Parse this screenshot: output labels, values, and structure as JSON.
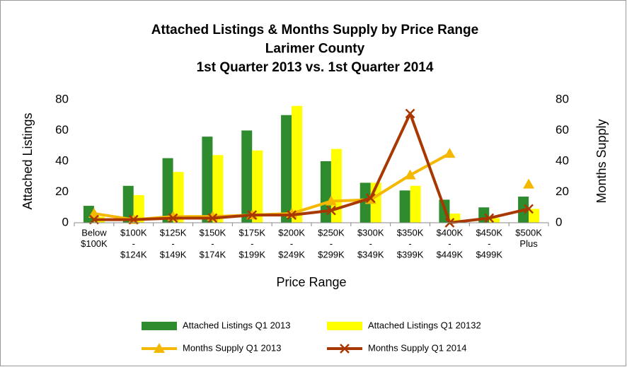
{
  "chart_data": {
    "type": "bar",
    "title": [
      "Attached Listings & Months Supply by Price Range",
      "Larimer County",
      "1st Quarter 2013 vs. 1st Quarter 2014"
    ],
    "categories": [
      [
        "Below",
        "$100K"
      ],
      [
        "$100K",
        "-",
        "$124K"
      ],
      [
        "$125K",
        "-",
        "$149K"
      ],
      [
        "$150K",
        "-",
        "$174K"
      ],
      [
        "$175K",
        "-",
        "$199K"
      ],
      [
        "$200K",
        "-",
        "$249K"
      ],
      [
        "$250K",
        "-",
        "$299K"
      ],
      [
        "$300K",
        "-",
        "$349K"
      ],
      [
        "$350K",
        "-",
        "$399K"
      ],
      [
        "$400K",
        "-",
        "$449K"
      ],
      [
        "$450K",
        "-",
        "$499K"
      ],
      [
        "$500K",
        "Plus"
      ]
    ],
    "x_label": "Price Range",
    "y_label": "Attached Listings",
    "y2_label": "Months Supply",
    "ylim": [
      0,
      80
    ],
    "yticks": [
      0,
      20,
      40,
      60,
      80
    ],
    "y2lim": [
      0,
      80
    ],
    "y2ticks": [
      0,
      20,
      40,
      60,
      80
    ],
    "grid": false,
    "series": [
      {
        "name": "Attached Listings Q1 2013",
        "type": "bar",
        "color": "#2e8b2e",
        "values": [
          11,
          24,
          42,
          56,
          60,
          70,
          40,
          26,
          21,
          15,
          10,
          17
        ]
      },
      {
        "name": "Attached Listings Q1 20132",
        "type": "bar",
        "color": "#ffff00",
        "values": [
          4,
          18,
          33,
          44,
          47,
          76,
          48,
          26,
          24,
          6,
          3,
          9
        ]
      },
      {
        "name": "Months Supply Q1 2013",
        "type": "line",
        "axis": "y2",
        "marker": "triangle",
        "color": "#f5b800",
        "values": [
          6,
          2,
          4,
          4,
          5,
          6,
          14,
          15,
          31,
          45,
          null,
          25
        ]
      },
      {
        "name": "Months Supply Q1 2014",
        "type": "line",
        "axis": "y2",
        "marker": "x",
        "color": "#a83800",
        "values": [
          2,
          2,
          3,
          3,
          5,
          5,
          8,
          16,
          71,
          0,
          3,
          9
        ]
      }
    ]
  }
}
